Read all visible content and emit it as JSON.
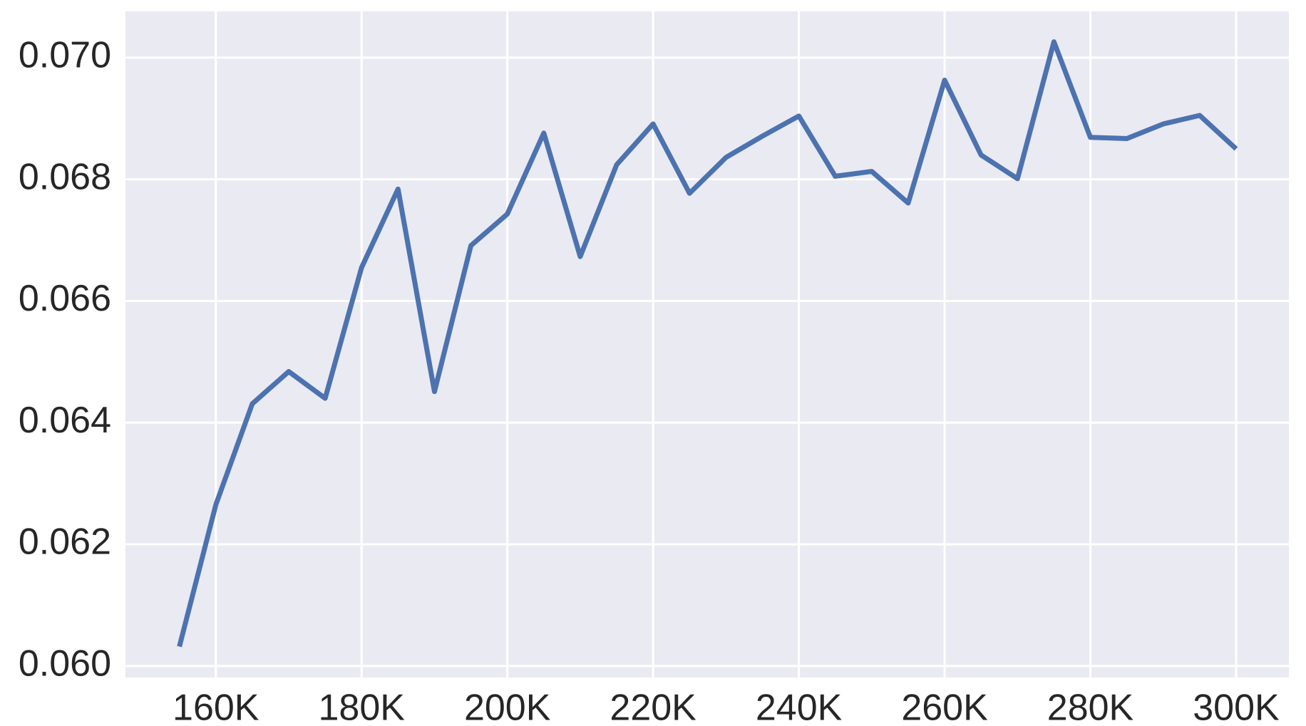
{
  "chart_data": {
    "type": "line",
    "x": [
      155000,
      160000,
      165000,
      170000,
      175000,
      180000,
      185000,
      190000,
      195000,
      200000,
      205000,
      210000,
      215000,
      220000,
      225000,
      230000,
      235000,
      240000,
      245000,
      250000,
      255000,
      260000,
      265000,
      270000,
      275000,
      280000,
      285000,
      290000,
      295000,
      300000
    ],
    "series": [
      {
        "color": "#4c72b0",
        "values": [
          0.06032,
          0.06265,
          0.06431,
          0.06484,
          0.0644,
          0.06655,
          0.06784,
          0.06451,
          0.06691,
          0.06743,
          0.06876,
          0.06673,
          0.06824,
          0.06891,
          0.06777,
          0.06836,
          0.06871,
          0.06904,
          0.06805,
          0.06813,
          0.06761,
          0.06963,
          0.0684,
          0.06801,
          0.07026,
          0.06869,
          0.06867,
          0.06891,
          0.06905,
          0.0685
        ]
      }
    ],
    "xlim": [
      147600,
      307240
    ],
    "xticks": [
      {
        "value": 160000,
        "label": "160K"
      },
      {
        "value": 180000,
        "label": "180K"
      },
      {
        "value": 200000,
        "label": "200K"
      },
      {
        "value": 220000,
        "label": "220K"
      },
      {
        "value": 240000,
        "label": "240K"
      },
      {
        "value": 260000,
        "label": "260K"
      },
      {
        "value": 280000,
        "label": "280K"
      },
      {
        "value": 300000,
        "label": "300K"
      }
    ],
    "ylim": [
      0.05981,
      0.07076
    ],
    "yticks": [
      {
        "value": 0.06,
        "label": "0.060"
      },
      {
        "value": 0.062,
        "label": "0.062"
      },
      {
        "value": 0.064,
        "label": "0.064"
      },
      {
        "value": 0.066,
        "label": "0.066"
      },
      {
        "value": 0.068,
        "label": "0.068"
      },
      {
        "value": 0.07,
        "label": "0.070"
      }
    ],
    "grid": true,
    "background": "#eaeaf2"
  }
}
